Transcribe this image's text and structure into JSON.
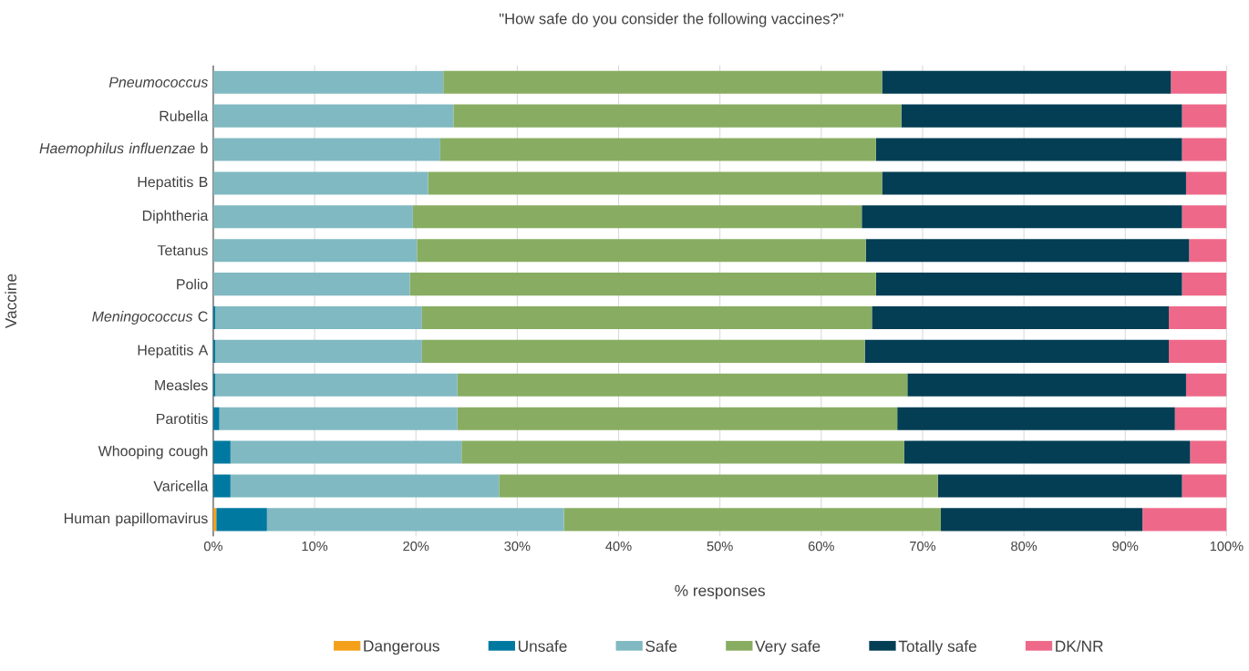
{
  "chart_data": {
    "type": "bar",
    "orientation": "horizontal",
    "stacked": true,
    "title": "\"How safe do you consider the following vaccines?\"",
    "xlabel": "% responses",
    "ylabel": "Vaccine",
    "categories": [
      "*Pneumococcus*",
      "Rubella",
      "*Haemophilus influenzae* b",
      "Hepatitis B",
      "Diphtheria",
      "Tetanus",
      "Polio",
      "*Meningococcus* C",
      "Hepatitis A",
      "Measles",
      "Parotitis",
      "Whooping cough",
      "Varicella",
      "Human papillomavirus"
    ],
    "series": [
      {
        "name": "Dangerous",
        "color": "#f5a01a",
        "values": [
          0,
          0,
          0,
          0,
          0,
          0,
          0,
          0,
          0,
          0,
          0,
          0,
          0,
          0.3
        ]
      },
      {
        "name": "Unsafe",
        "color": "#0079a0",
        "values": [
          0,
          0,
          0,
          0,
          0,
          0,
          0,
          0.2,
          0.2,
          0.2,
          0.6,
          1.7,
          1.7,
          5.0
        ]
      },
      {
        "name": "Safe",
        "color": "#80b9c1",
        "values": [
          22.7,
          23.7,
          22.4,
          21.2,
          19.7,
          20.1,
          19.4,
          20.4,
          20.4,
          23.9,
          23.5,
          22.8,
          26.5,
          29.3
        ]
      },
      {
        "name": "Very safe",
        "color": "#88ad62",
        "values": [
          43.3,
          44.2,
          43.0,
          44.8,
          44.3,
          44.3,
          46.0,
          44.4,
          43.7,
          44.4,
          43.4,
          43.7,
          43.3,
          37.2
        ]
      },
      {
        "name": "Totally safe",
        "color": "#033e54",
        "values": [
          28.5,
          27.7,
          30.2,
          30.0,
          31.6,
          31.9,
          30.2,
          29.3,
          30.0,
          27.5,
          27.4,
          28.2,
          24.1,
          19.9
        ]
      },
      {
        "name": "DK/NR",
        "color": "#ee6989",
        "values": [
          5.5,
          4.4,
          4.4,
          4.0,
          4.4,
          3.7,
          4.4,
          5.7,
          5.7,
          4.0,
          5.1,
          3.6,
          4.4,
          8.3
        ]
      }
    ],
    "xlim": [
      0,
      100
    ],
    "xticks": [
      {
        "value": 0,
        "label": "0%"
      },
      {
        "value": 10,
        "label": "10%"
      },
      {
        "value": 20,
        "label": "20%"
      },
      {
        "value": 30,
        "label": "30%"
      },
      {
        "value": 40,
        "label": "40%"
      },
      {
        "value": 50,
        "label": "50%"
      },
      {
        "value": 60,
        "label": "60%"
      },
      {
        "value": 70,
        "label": "70%"
      },
      {
        "value": 80,
        "label": "80%"
      },
      {
        "value": 90,
        "label": "90%"
      },
      {
        "value": 100,
        "label": "100%"
      }
    ],
    "grid": "x",
    "legend": "bottom"
  }
}
